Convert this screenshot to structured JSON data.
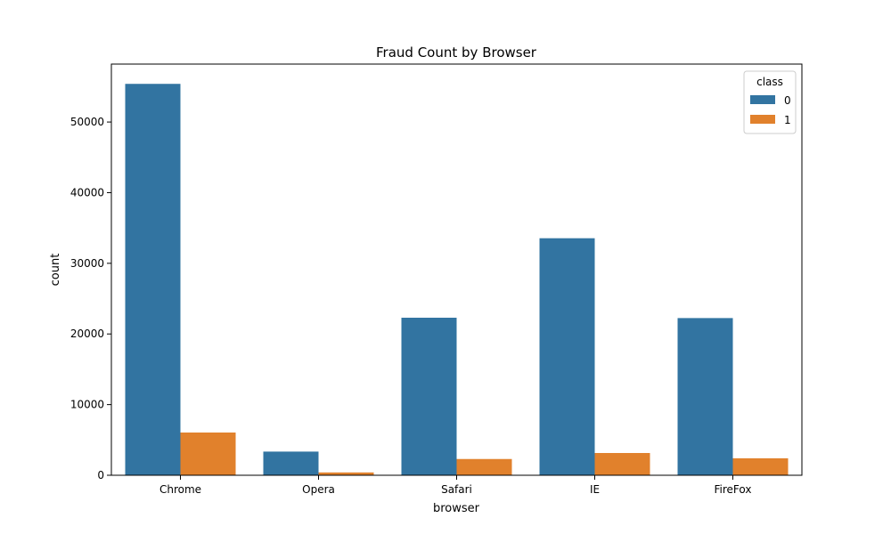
{
  "chart_data": {
    "type": "bar",
    "title": "Fraud Count by Browser",
    "xlabel": "browser",
    "ylabel": "count",
    "categories": [
      "Chrome",
      "Opera",
      "Safari",
      "IE",
      "FireFox"
    ],
    "series": [
      {
        "name": "0",
        "color": "#3274a1",
        "values": [
          55400,
          3350,
          22300,
          33550,
          22250
        ]
      },
      {
        "name": "1",
        "color": "#e1812c",
        "values": [
          6050,
          400,
          2300,
          3150,
          2400
        ]
      }
    ],
    "ylim": [
      0,
      58200
    ],
    "yticks": [
      0,
      10000,
      20000,
      30000,
      40000,
      50000
    ],
    "legend": {
      "title": "class",
      "position": "top-right"
    },
    "grid": false
  }
}
